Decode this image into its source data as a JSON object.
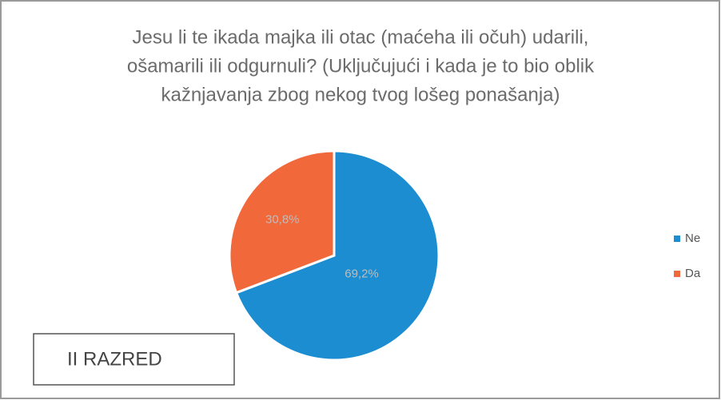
{
  "chart_data": {
    "type": "pie",
    "title": [
      "Jesu li te ikada majka ili otac (maćeha ili očuh) udarili,",
      "ošamarili ili odgurnuli? (Uključujući i kada je to bio oblik",
      "kažnjavanja zbog nekog tvog lošeg ponašanja)"
    ],
    "categories": [
      "Ne",
      "Da"
    ],
    "values": [
      69.2,
      30.8
    ],
    "value_labels": [
      "69,2%",
      "30,8%"
    ],
    "colors": [
      "#1b8dd0",
      "#f1683a"
    ],
    "legend": "right",
    "annotation": "II RAZRED"
  }
}
